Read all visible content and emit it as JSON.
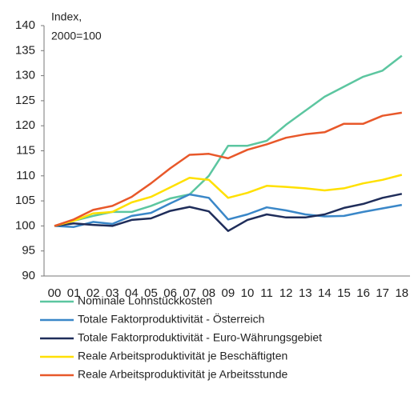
{
  "chart_data": {
    "type": "line",
    "ylabel": [
      "Index,",
      "2000=100"
    ],
    "categories": [
      "00",
      "01",
      "02",
      "03",
      "04",
      "05",
      "06",
      "07",
      "08",
      "09",
      "10",
      "11",
      "12",
      "13",
      "14",
      "15",
      "16",
      "17",
      "18"
    ],
    "ylim": [
      90,
      140
    ],
    "yticks": [
      90,
      95,
      100,
      105,
      110,
      115,
      120,
      125,
      130,
      135,
      140
    ],
    "series": [
      {
        "name": "Nominale Lohnstückkosten",
        "color": "#5cc6a0",
        "values": [
          100,
          101,
          102,
          102.8,
          102.8,
          104,
          105.5,
          106.3,
          110,
          116,
          116,
          117,
          120.2,
          123,
          125.8,
          127.8,
          129.8,
          131,
          134
        ]
      },
      {
        "name": "Totale Faktorproduktivität - Österreich",
        "color": "#3a87c8",
        "values": [
          100,
          99.8,
          100.8,
          100.4,
          102,
          102.6,
          104.5,
          106.3,
          105.6,
          101.3,
          102.3,
          103.7,
          103.1,
          102.3,
          101.9,
          102,
          102.8,
          103.5,
          104.2
        ]
      },
      {
        "name": "Totale Faktorproduktivität - Euro-Währungsgebiet",
        "color": "#1f2d5a",
        "values": [
          100,
          100.5,
          100.2,
          100,
          101.2,
          101.5,
          103,
          103.8,
          102.9,
          99,
          101.2,
          102.3,
          101.7,
          101.7,
          102.3,
          103.6,
          104.4,
          105.6,
          106.4
        ]
      },
      {
        "name": "Reale Arbeitsproduktivität je Beschäftigten",
        "color": "#ffe000",
        "values": [
          100,
          101,
          102.5,
          102.8,
          104.7,
          105.8,
          107.7,
          109.6,
          109.2,
          105.6,
          106.6,
          108,
          107.8,
          107.5,
          107.1,
          107.5,
          108.5,
          109.2,
          110.2
        ]
      },
      {
        "name": "Reale Arbeitsproduktivität je Arbeitsstunde",
        "color": "#e8582a",
        "values": [
          100,
          101.3,
          103.2,
          104,
          105.8,
          108.5,
          111.5,
          114.2,
          114.4,
          113.5,
          115.2,
          116.3,
          117.6,
          118.3,
          118.7,
          120.4,
          120.4,
          122,
          122.6
        ]
      }
    ]
  }
}
